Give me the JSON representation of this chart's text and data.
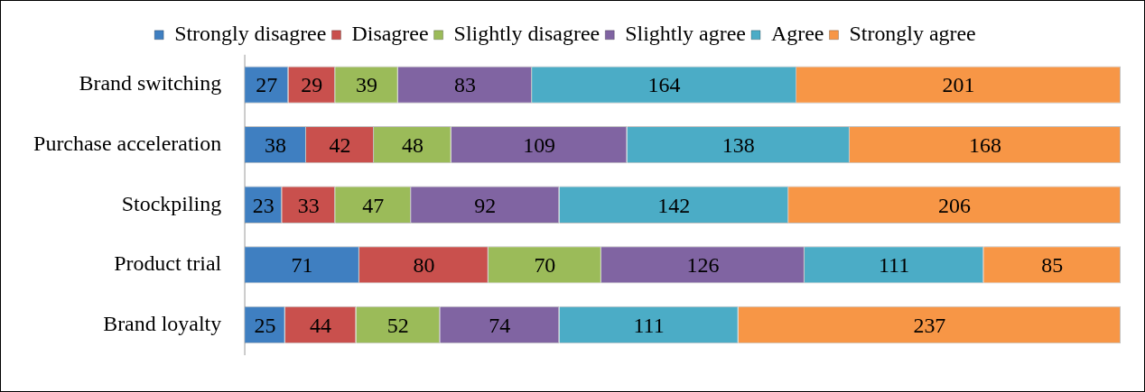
{
  "chart_data": {
    "type": "bar",
    "orientation": "horizontal",
    "stacked": true,
    "data_labels": true,
    "legend": "top",
    "categories": [
      "Brand switching",
      "Purchase acceleration",
      "Stockpiling",
      "Product trial",
      "Brand loyalty"
    ],
    "series": [
      {
        "name": "Strongly disagree",
        "color": "#3f7fc1",
        "values": [
          27,
          38,
          23,
          71,
          25
        ]
      },
      {
        "name": "Disagree",
        "color": "#c9504d",
        "values": [
          29,
          42,
          33,
          80,
          44
        ]
      },
      {
        "name": "Slightly disagree",
        "color": "#9bbb59",
        "values": [
          39,
          48,
          47,
          70,
          52
        ]
      },
      {
        "name": "Slightly agree",
        "color": "#8064a2",
        "values": [
          83,
          109,
          92,
          126,
          74
        ]
      },
      {
        "name": "Agree",
        "color": "#4bacc6",
        "values": [
          164,
          138,
          142,
          111,
          111
        ]
      },
      {
        "name": "Strongly agree",
        "color": "#f79646",
        "values": [
          201,
          168,
          206,
          85,
          237
        ]
      }
    ]
  }
}
